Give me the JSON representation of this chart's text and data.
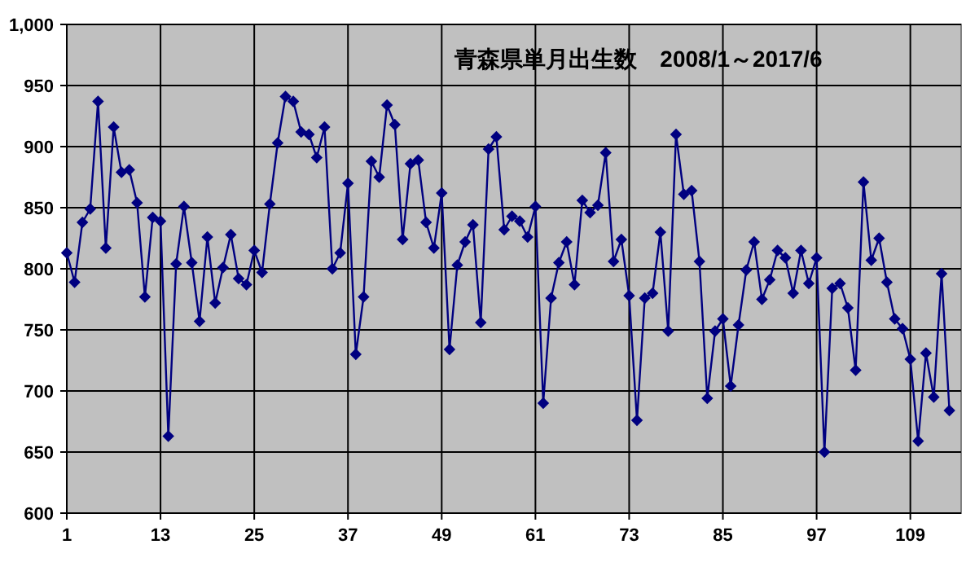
{
  "chart_data": {
    "type": "line",
    "title": "青森県単月出生数　2008/1～2017/6",
    "x": [
      1,
      2,
      3,
      4,
      5,
      6,
      7,
      8,
      9,
      10,
      11,
      12,
      13,
      14,
      15,
      16,
      17,
      18,
      19,
      20,
      21,
      22,
      23,
      24,
      25,
      26,
      27,
      28,
      29,
      30,
      31,
      32,
      33,
      34,
      35,
      36,
      37,
      38,
      39,
      40,
      41,
      42,
      43,
      44,
      45,
      46,
      47,
      48,
      49,
      50,
      51,
      52,
      53,
      54,
      55,
      56,
      57,
      58,
      59,
      60,
      61,
      62,
      63,
      64,
      65,
      66,
      67,
      68,
      69,
      70,
      71,
      72,
      73,
      74,
      75,
      76,
      77,
      78,
      79,
      80,
      81,
      82,
      83,
      84,
      85,
      86,
      87,
      88,
      89,
      90,
      91,
      92,
      93,
      94,
      95,
      96,
      97,
      98,
      99,
      100,
      101,
      102,
      103,
      104,
      105,
      106,
      107,
      108,
      109,
      110,
      111,
      112,
      113,
      114
    ],
    "series": [
      {
        "color": "#000080",
        "values": [
          813,
          789,
          838,
          849,
          937,
          817,
          916,
          879,
          881,
          854,
          777,
          842,
          839,
          663,
          804,
          851,
          805,
          757,
          826,
          772,
          801,
          828,
          792,
          787,
          815,
          797,
          853,
          903,
          941,
          937,
          912,
          910,
          891,
          916,
          800,
          813,
          870,
          730,
          777,
          888,
          875,
          934,
          918,
          824,
          886,
          889,
          838,
          817,
          862,
          734,
          803,
          822,
          836,
          756,
          898,
          908,
          832,
          843,
          839,
          826,
          851,
          690,
          776,
          805,
          822,
          787,
          856,
          846,
          852,
          895,
          806,
          824,
          778,
          676,
          776,
          780,
          830,
          749,
          910,
          861,
          864,
          806,
          694,
          749,
          759,
          704,
          754,
          799,
          822,
          775,
          791,
          815,
          809,
          780,
          815,
          788,
          809,
          650,
          784,
          788,
          768,
          717,
          871,
          807,
          825,
          789,
          759,
          751,
          726,
          659,
          731,
          695,
          796,
          684
        ]
      }
    ],
    "xlim": [
      1,
      115.5
    ],
    "xticks": [
      1,
      13,
      25,
      37,
      49,
      61,
      73,
      85,
      97,
      109
    ],
    "ylim": [
      600,
      1000
    ],
    "yticks": [
      600,
      650,
      700,
      750,
      800,
      850,
      900,
      950,
      {
        "value": 1000,
        "label": "1,000"
      }
    ],
    "grid": true,
    "marker": "diamond",
    "line_style": "solid"
  }
}
